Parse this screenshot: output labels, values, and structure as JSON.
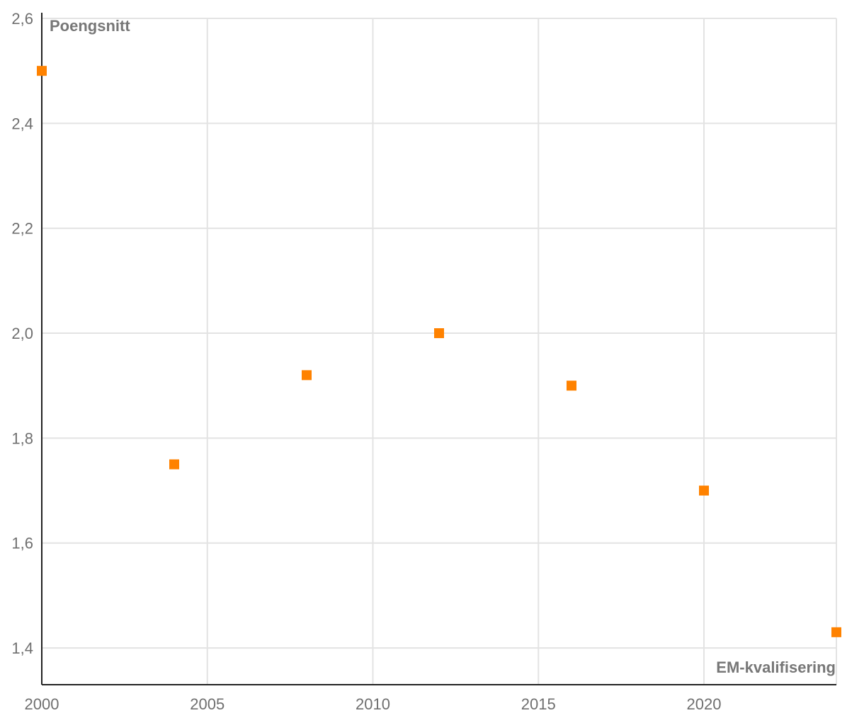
{
  "chart_data": {
    "type": "scatter",
    "xlabel": "EM-kvalifisering",
    "ylabel": "Poengsnitt",
    "xlim": [
      2000,
      2024
    ],
    "ylim": [
      1.33,
      2.6
    ],
    "x_ticks": [
      2000,
      2005,
      2010,
      2015,
      2020
    ],
    "x_tick_labels": [
      "2000",
      "2005",
      "2010",
      "2015",
      "2020"
    ],
    "y_ticks": [
      1.4,
      1.6,
      1.8,
      2.0,
      2.2,
      2.4,
      2.6
    ],
    "y_tick_labels": [
      "1,4",
      "1,6",
      "1,8",
      "2,0",
      "2,2",
      "2,4",
      "2,6"
    ],
    "grid": true,
    "marker": "square",
    "series": [
      {
        "color": "#ff8200",
        "points": [
          {
            "x": 2000,
            "y": 2.5
          },
          {
            "x": 2004,
            "y": 1.75
          },
          {
            "x": 2008,
            "y": 1.92
          },
          {
            "x": 2012,
            "y": 2.0
          },
          {
            "x": 2016,
            "y": 1.9
          },
          {
            "x": 2020,
            "y": 1.7
          },
          {
            "x": 2024,
            "y": 1.43
          }
        ]
      }
    ]
  }
}
